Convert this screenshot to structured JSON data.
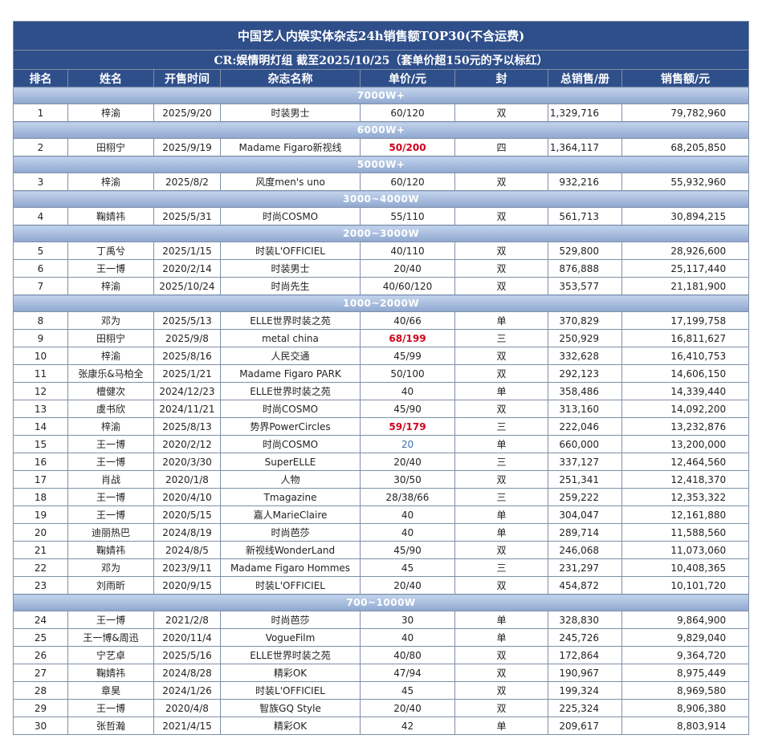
{
  "title": "中国艺人内娱实体杂志24h销售额TOP30(不含运费)",
  "subtitle": "CR:娱情明灯组   截至2025/10/25（套单价超150元的予以标红）",
  "headers": [
    "排名",
    "姓名",
    "开售时间",
    "杂志名称",
    "单价/元",
    "封",
    "总销售/册",
    "销售额/元"
  ],
  "groups": [
    {
      "label": "7000W+",
      "rows": [
        {
          "rank": "1",
          "name": "梓渝",
          "date": "2025/9/20",
          "magazine": "时装男士",
          "price": "60/120",
          "cover": "双",
          "copies": "1,329,716",
          "sales": "79,782,960"
        }
      ]
    },
    {
      "label": "6000W+",
      "rows": [
        {
          "rank": "2",
          "name": "田栩宁",
          "date": "2025/9/19",
          "magazine": "Madame Figaro新视线",
          "price": "50/200",
          "price_style": "red",
          "cover": "四",
          "copies": "1,364,117",
          "sales": "68,205,850"
        }
      ]
    },
    {
      "label": "5000W+",
      "rows": [
        {
          "rank": "3",
          "name": "梓渝",
          "date": "2025/8/2",
          "magazine": "风度men's uno",
          "price": "60/120",
          "cover": "双",
          "copies": "932,216",
          "sales": "55,932,960"
        }
      ]
    },
    {
      "label": "3000~4000W",
      "rows": [
        {
          "rank": "4",
          "name": "鞠婧祎",
          "date": "2025/5/31",
          "magazine": "时尚COSMO",
          "price": "55/110",
          "cover": "双",
          "copies": "561,713",
          "sales": "30,894,215"
        }
      ]
    },
    {
      "label": "2000~3000W",
      "rows": [
        {
          "rank": "5",
          "name": "丁禹兮",
          "date": "2025/1/15",
          "magazine": "时装L'OFFICIEL",
          "price": "40/110",
          "cover": "双",
          "copies": "529,800",
          "sales": "28,926,600"
        },
        {
          "rank": "6",
          "name": "王一博",
          "date": "2020/2/14",
          "magazine": "时装男士",
          "price": "20/40",
          "cover": "双",
          "copies": "876,888",
          "sales": "25,117,440"
        },
        {
          "rank": "7",
          "name": "梓渝",
          "date": "2025/10/24",
          "magazine": "时尚先生",
          "price": "40/60/120",
          "cover": "双",
          "copies": "353,577",
          "sales": "21,181,900"
        }
      ]
    },
    {
      "label": "1000~2000W",
      "rows": [
        {
          "rank": "8",
          "name": "邓为",
          "date": "2025/5/13",
          "magazine": "ELLE世界时装之苑",
          "price": "40/66",
          "cover": "单",
          "copies": "370,829",
          "sales": "17,199,758"
        },
        {
          "rank": "9",
          "name": "田栩宁",
          "date": "2025/9/8",
          "magazine": "metal china",
          "price": "68/199",
          "price_style": "red",
          "cover": "三",
          "copies": "250,929",
          "sales": "16,811,627"
        },
        {
          "rank": "10",
          "name": "梓渝",
          "date": "2025/8/16",
          "magazine": "人民交通",
          "price": "45/99",
          "cover": "双",
          "copies": "332,628",
          "sales": "16,410,753"
        },
        {
          "rank": "11",
          "name": "张康乐&马柏全",
          "date": "2025/1/21",
          "magazine": "Madame Figaro PARK",
          "price": "50/100",
          "cover": "双",
          "copies": "292,123",
          "sales": "14,606,150"
        },
        {
          "rank": "12",
          "name": "檀健次",
          "date": "2024/12/23",
          "magazine": "ELLE世界时装之苑",
          "price": "40",
          "cover": "单",
          "copies": "358,486",
          "sales": "14,339,440"
        },
        {
          "rank": "13",
          "name": "虞书欣",
          "date": "2024/11/21",
          "magazine": "时尚COSMO",
          "price": "45/90",
          "cover": "双",
          "copies": "313,160",
          "sales": "14,092,200"
        },
        {
          "rank": "14",
          "name": "梓渝",
          "date": "2025/8/13",
          "magazine": "势界PowerCircles",
          "price": "59/179",
          "price_style": "red",
          "cover": "三",
          "copies": "222,046",
          "sales": "13,232,876"
        },
        {
          "rank": "15",
          "name": "王一博",
          "date": "2020/2/12",
          "magazine": "时尚COSMO",
          "price": "20",
          "price_style": "blue",
          "cover": "单",
          "copies": "660,000",
          "sales": "13,200,000"
        },
        {
          "rank": "16",
          "name": "王一博",
          "date": "2020/3/30",
          "magazine": "SuperELLE",
          "price": "20/40",
          "cover": "三",
          "copies": "337,127",
          "sales": "12,464,560"
        },
        {
          "rank": "17",
          "name": "肖战",
          "date": "2020/1/8",
          "magazine": "人物",
          "price": "30/50",
          "cover": "双",
          "copies": "251,341",
          "sales": "12,418,370"
        },
        {
          "rank": "18",
          "name": "王一博",
          "date": "2020/4/10",
          "magazine": "Tmagazine",
          "price": "28/38/66",
          "cover": "三",
          "copies": "259,222",
          "sales": "12,353,322"
        },
        {
          "rank": "19",
          "name": "王一博",
          "date": "2020/5/15",
          "magazine": "嘉人MarieClaire",
          "price": "40",
          "cover": "单",
          "copies": "304,047",
          "sales": "12,161,880"
        },
        {
          "rank": "20",
          "name": "迪丽热巴",
          "date": "2024/8/19",
          "magazine": "时尚芭莎",
          "price": "40",
          "cover": "单",
          "copies": "289,714",
          "sales": "11,588,560"
        },
        {
          "rank": "21",
          "name": "鞠婧祎",
          "date": "2024/8/5",
          "magazine": "新视线WonderLand",
          "price": "45/90",
          "cover": "双",
          "copies": "246,068",
          "sales": "11,073,060"
        },
        {
          "rank": "22",
          "name": "邓为",
          "date": "2023/9/11",
          "magazine": "Madame Figaro Hommes",
          "price": "45",
          "cover": "三",
          "copies": "231,297",
          "sales": "10,408,365"
        },
        {
          "rank": "23",
          "name": "刘雨昕",
          "date": "2020/9/15",
          "magazine": "时装L'OFFICIEL",
          "price": "20/40",
          "cover": "双",
          "copies": "454,872",
          "sales": "10,101,720"
        }
      ]
    },
    {
      "label": "700~1000W",
      "rows": [
        {
          "rank": "24",
          "name": "王一博",
          "date": "2021/2/8",
          "magazine": "时尚芭莎",
          "price": "30",
          "cover": "单",
          "copies": "328,830",
          "sales": "9,864,900"
        },
        {
          "rank": "25",
          "name": "王一博&周迅",
          "date": "2020/11/4",
          "magazine": "VogueFilm",
          "price": "40",
          "cover": "单",
          "copies": "245,726",
          "sales": "9,829,040"
        },
        {
          "rank": "26",
          "name": "宁艺卓",
          "date": "2025/5/16",
          "magazine": "ELLE世界时装之苑",
          "price": "40/80",
          "cover": "双",
          "copies": "172,864",
          "sales": "9,364,720"
        },
        {
          "rank": "27",
          "name": "鞠婧祎",
          "date": "2024/8/28",
          "magazine": "精彩OK",
          "price": "47/94",
          "cover": "双",
          "copies": "190,967",
          "sales": "8,975,449"
        },
        {
          "rank": "28",
          "name": "章昊",
          "date": "2024/1/26",
          "magazine": "时装L'OFFICIEL",
          "price": "45",
          "cover": "双",
          "copies": "199,324",
          "sales": "8,969,580"
        },
        {
          "rank": "29",
          "name": "王一博",
          "date": "2020/4/8",
          "magazine": "智族GQ Style",
          "price": "20/40",
          "cover": "双",
          "copies": "225,324",
          "sales": "8,906,380"
        },
        {
          "rank": "30",
          "name": "张哲瀚",
          "date": "2021/4/15",
          "magazine": "精彩OK",
          "price": "42",
          "cover": "单",
          "copies": "209,617",
          "sales": "8,803,914"
        }
      ]
    }
  ]
}
